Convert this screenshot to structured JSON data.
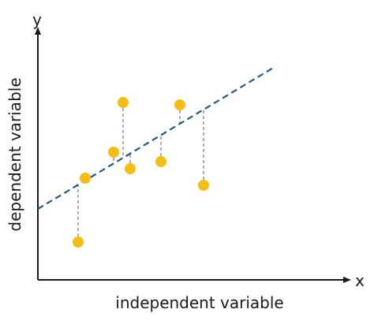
{
  "diagram": {
    "labels": {
      "y_axis_letter": "y",
      "x_axis_letter": "x",
      "ylabel": "dependent variable",
      "xlabel": "independent variable"
    },
    "colors": {
      "axis": "#1a1a1a",
      "point": "#F5BE13",
      "regression_line": "#1F5C7F",
      "residual": "#7a7a7a"
    }
  },
  "chart_data": {
    "type": "scatter",
    "title": "",
    "xlabel": "independent variable",
    "ylabel": "dependent variable",
    "xlim": [
      0,
      10
    ],
    "ylim": [
      0,
      10
    ],
    "grid": false,
    "legend": "none",
    "series": [
      {
        "points": [
          {
            "x": 1.7,
            "y": 1.6
          },
          {
            "x": 2.0,
            "y": 4.3
          },
          {
            "x": 3.2,
            "y": 5.4
          },
          {
            "x": 3.6,
            "y": 7.5
          },
          {
            "x": 3.9,
            "y": 4.7
          },
          {
            "x": 5.2,
            "y": 5.0
          },
          {
            "x": 6.0,
            "y": 7.4
          },
          {
            "x": 7.0,
            "y": 4.0
          }
        ]
      }
    ],
    "regression_line": {
      "intercept": 3.0,
      "slope": 0.6
    },
    "residuals_shown": true
  }
}
